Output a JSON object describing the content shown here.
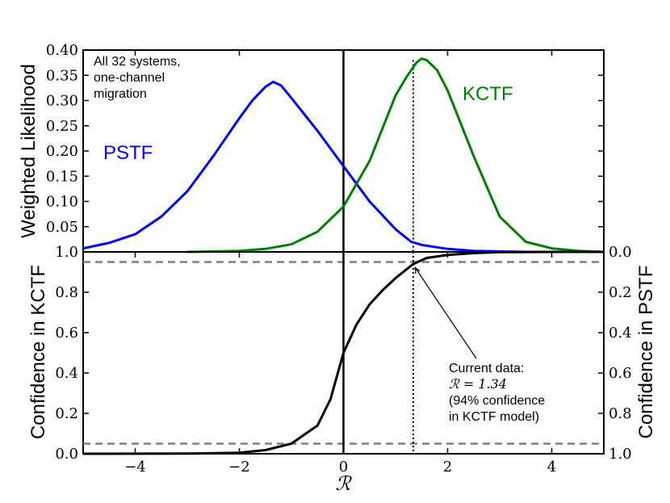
{
  "chart_data": [
    {
      "panel": "top",
      "type": "line",
      "xlabel": "",
      "ylabel": "Weighted Likelihood",
      "xlim": [
        -5,
        5
      ],
      "ylim": [
        0,
        0.4
      ],
      "y_tick_labels": [
        "0.05",
        "0.10",
        "0.15",
        "0.20",
        "0.25",
        "0.30",
        "0.35",
        "0.40"
      ],
      "y_tick_values": [
        0.05,
        0.1,
        0.15,
        0.2,
        0.25,
        0.3,
        0.35,
        0.4
      ],
      "vertical_lines": [
        {
          "x": 0,
          "style": "solid"
        },
        {
          "x": 1.34,
          "style": "dotted"
        }
      ],
      "series": [
        {
          "name": "PSTF",
          "color": "#0000ff",
          "x": [
            -5,
            -4.5,
            -4,
            -3.5,
            -3,
            -2.5,
            -2,
            -1.75,
            -1.5,
            -1.35,
            -1.2,
            -1,
            -0.5,
            0,
            0.5,
            1,
            1.3,
            1.5,
            2,
            2.5,
            3,
            3.5,
            4
          ],
          "y": [
            0.007,
            0.018,
            0.035,
            0.07,
            0.12,
            0.19,
            0.265,
            0.3,
            0.327,
            0.337,
            0.33,
            0.305,
            0.24,
            0.17,
            0.1,
            0.045,
            0.02,
            0.014,
            0.006,
            0.002,
            0.001,
            0,
            0
          ]
        },
        {
          "name": "KCTF",
          "color": "#008000",
          "x": [
            -3,
            -2.5,
            -2,
            -1.5,
            -1,
            -0.5,
            0,
            0.5,
            1,
            1.2,
            1.4,
            1.5,
            1.6,
            1.8,
            2,
            2.5,
            3,
            3.5,
            4,
            4.5,
            5
          ],
          "y": [
            0,
            0.001,
            0.002,
            0.006,
            0.015,
            0.04,
            0.09,
            0.18,
            0.31,
            0.345,
            0.375,
            0.383,
            0.38,
            0.36,
            0.32,
            0.19,
            0.07,
            0.02,
            0.007,
            0.002,
            0
          ]
        }
      ],
      "annotations": [
        "All 32 systems,",
        "one-channel",
        "migration"
      ],
      "labels": [
        "PSTF",
        "KCTF"
      ]
    },
    {
      "panel": "bottom",
      "type": "line",
      "xlabel": "R",
      "ylabel": "Confidence in KCTF",
      "ylabel_right": "Confidence in PSTF",
      "xlim": [
        -5,
        5
      ],
      "ylim": [
        0,
        1.0
      ],
      "x_tick_labels": [
        "−4",
        "−2",
        "0",
        "2",
        "4"
      ],
      "x_tick_values": [
        -4,
        -2,
        0,
        2,
        4
      ],
      "y_tick_labels_left": [
        "0.0",
        "0.2",
        "0.4",
        "0.6",
        "0.8",
        "1.0"
      ],
      "y_tick_labels_right": [
        "1.0",
        "0.8",
        "0.6",
        "0.4",
        "0.2",
        "0.0"
      ],
      "y_tick_values": [
        0,
        0.2,
        0.4,
        0.6,
        0.8,
        1.0
      ],
      "hlines": [
        {
          "y": 0.05,
          "style": "dashed"
        },
        {
          "y": 0.95,
          "style": "dashed"
        }
      ],
      "vertical_lines": [
        {
          "x": 0,
          "style": "solid"
        },
        {
          "x": 1.34,
          "style": "dotted"
        }
      ],
      "series": [
        {
          "name": "Confidence",
          "color": "#000000",
          "x": [
            -5,
            -3,
            -2,
            -1.5,
            -1,
            -0.5,
            -0.25,
            0,
            0.25,
            0.5,
            0.75,
            1,
            1.34,
            1.6,
            2,
            2.5,
            3,
            4,
            5
          ],
          "y": [
            0,
            0.001,
            0.005,
            0.018,
            0.05,
            0.14,
            0.27,
            0.5,
            0.64,
            0.74,
            0.81,
            0.87,
            0.94,
            0.97,
            0.985,
            0.994,
            0.999,
            1,
            1
          ]
        }
      ],
      "annotation_lines": [
        "Current data:",
        "R = 1.34",
        "(94% confidence",
        "in KCTF model)"
      ]
    }
  ]
}
